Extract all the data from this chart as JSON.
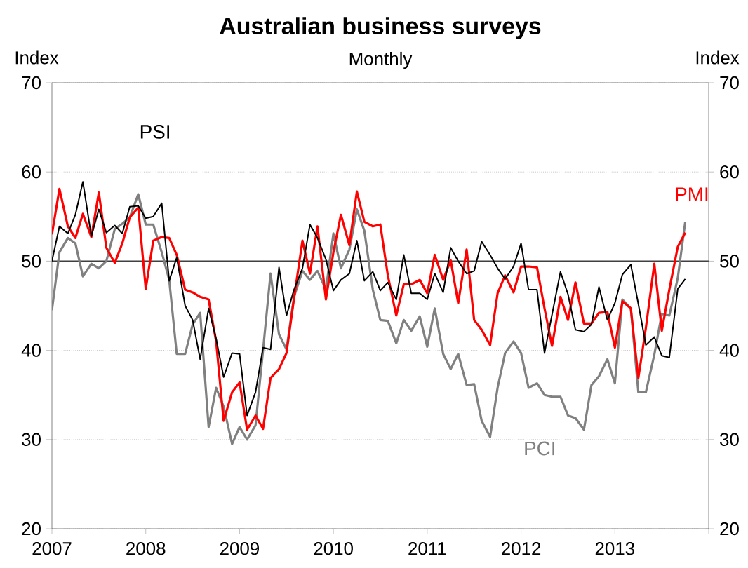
{
  "chart_data": {
    "type": "line",
    "title": "Australian business surveys",
    "subtitle": "Monthly",
    "ylabel": "Index",
    "y2label": "Index",
    "x": [
      "2007-01",
      "2007-02",
      "2007-03",
      "2007-04",
      "2007-05",
      "2007-06",
      "2007-07",
      "2007-08",
      "2007-09",
      "2007-10",
      "2007-11",
      "2007-12",
      "2008-01",
      "2008-02",
      "2008-03",
      "2008-04",
      "2008-05",
      "2008-06",
      "2008-07",
      "2008-08",
      "2008-09",
      "2008-10",
      "2008-11",
      "2008-12",
      "2009-01",
      "2009-02",
      "2009-03",
      "2009-04",
      "2009-05",
      "2009-06",
      "2009-07",
      "2009-08",
      "2009-09",
      "2009-10",
      "2009-11",
      "2009-12",
      "2010-01",
      "2010-02",
      "2010-03",
      "2010-04",
      "2010-05",
      "2010-06",
      "2010-07",
      "2010-08",
      "2010-09",
      "2010-10",
      "2010-11",
      "2010-12",
      "2011-01",
      "2011-02",
      "2011-03",
      "2011-04",
      "2011-05",
      "2011-06",
      "2011-07",
      "2011-08",
      "2011-09",
      "2011-10",
      "2011-11",
      "2011-12",
      "2012-01",
      "2012-02",
      "2012-03",
      "2012-04",
      "2012-05",
      "2012-06",
      "2012-07",
      "2012-08",
      "2012-09",
      "2012-10",
      "2012-11",
      "2012-12",
      "2013-01",
      "2013-02",
      "2013-03",
      "2013-04",
      "2013-05",
      "2013-06",
      "2013-07",
      "2013-08",
      "2013-09",
      "2013-10"
    ],
    "series": [
      {
        "name": "PCI",
        "color": "#808080",
        "values": [
          44.5,
          51.0,
          52.6,
          52.0,
          48.3,
          49.7,
          49.2,
          50.0,
          53.6,
          54.2,
          54.9,
          57.5,
          54.1,
          54.1,
          51.0,
          47.9,
          39.6,
          39.6,
          42.9,
          44.2,
          31.4,
          35.8,
          33.7,
          29.5,
          31.4,
          30.0,
          31.6,
          40.0,
          48.6,
          41.8,
          40.1,
          46.0,
          48.9,
          47.9,
          48.9,
          46.8,
          53.1,
          49.2,
          51.3,
          55.8,
          53.4,
          46.8,
          43.4,
          43.3,
          40.8,
          43.4,
          42.2,
          43.8,
          40.4,
          44.7,
          39.6,
          37.9,
          39.6,
          36.1,
          36.2,
          32.1,
          30.3,
          35.8,
          39.7,
          41.0,
          39.7,
          35.8,
          36.3,
          35.0,
          34.8,
          34.8,
          32.7,
          32.4,
          31.1,
          36.1,
          37.1,
          39.0,
          36.3,
          45.7,
          44.7,
          35.3,
          35.3,
          39.5,
          44.1,
          43.9,
          48.1,
          54.4
        ]
      },
      {
        "name": "PMI",
        "color": "#ff0000",
        "values": [
          53.0,
          58.1,
          53.9,
          52.6,
          55.3,
          52.7,
          57.7,
          51.5,
          49.8,
          52.0,
          54.9,
          56.0,
          46.9,
          52.3,
          52.7,
          52.6,
          50.7,
          46.8,
          46.5,
          46.0,
          45.7,
          41.0,
          32.1,
          35.3,
          36.4,
          31.1,
          32.7,
          31.2,
          36.9,
          37.9,
          39.7,
          45.8,
          52.3,
          48.6,
          53.9,
          45.7,
          51.0,
          55.2,
          51.8,
          57.8,
          54.4,
          53.9,
          54.1,
          48.4,
          43.9,
          47.4,
          47.4,
          47.9,
          46.4,
          50.7,
          47.9,
          50.1,
          45.3,
          51.3,
          43.4,
          42.3,
          40.6,
          46.4,
          48.4,
          46.5,
          49.4,
          49.4,
          49.3,
          44.7,
          40.5,
          46.0,
          43.4,
          47.6,
          43.0,
          43.0,
          44.2,
          44.3,
          40.3,
          45.5,
          44.7,
          36.9,
          42.5,
          49.7,
          42.2,
          46.8,
          51.6,
          53.2
        ]
      },
      {
        "name": "PSI",
        "color": "#000000",
        "values": [
          50.0,
          53.9,
          53.1,
          55.2,
          58.9,
          52.8,
          55.8,
          53.2,
          54.0,
          53.1,
          56.1,
          56.2,
          54.8,
          55.0,
          56.5,
          47.8,
          50.4,
          45.0,
          43.4,
          39.0,
          44.7,
          41.3,
          37.0,
          39.7,
          39.6,
          32.7,
          35.3,
          40.3,
          40.1,
          49.3,
          43.9,
          46.8,
          49.2,
          54.1,
          52.6,
          50.2,
          46.7,
          47.9,
          48.6,
          52.3,
          47.8,
          48.8,
          46.7,
          47.6,
          45.7,
          50.7,
          46.4,
          46.4,
          45.7,
          48.6,
          46.5,
          51.5,
          50.0,
          48.6,
          48.9,
          52.2,
          50.7,
          49.2,
          48.0,
          49.4,
          52.0,
          46.8,
          46.8,
          39.7,
          44.0,
          48.8,
          46.3,
          42.3,
          42.1,
          42.9,
          47.1,
          43.4,
          45.3,
          48.5,
          49.6,
          45.2,
          40.6,
          41.5,
          39.4,
          39.2,
          46.9,
          48.0
        ]
      }
    ],
    "xlim": [
      "2007",
      "2014"
    ],
    "xticks": [
      "2007",
      "2008",
      "2009",
      "2010",
      "2011",
      "2012",
      "2013",
      {
        "value": "2014",
        "label": null
      }
    ],
    "ylim": [
      20,
      70
    ],
    "yticks": [
      20,
      30,
      40,
      50,
      60,
      70
    ],
    "y2lim": [
      20,
      70
    ],
    "y2ticks": [
      20,
      30,
      40,
      50,
      60,
      70
    ],
    "ref_lines": [
      {
        "axis": "y",
        "value": 50,
        "color": "#404040"
      }
    ],
    "grid": "y",
    "line_style": "solid"
  }
}
